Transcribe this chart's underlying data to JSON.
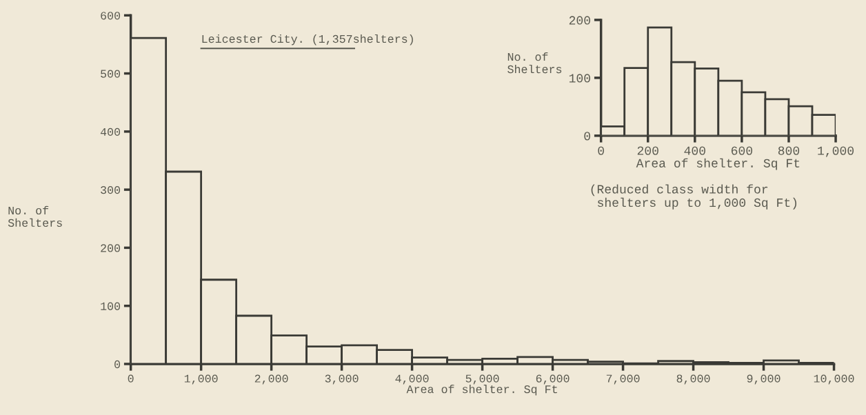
{
  "chart_data": [
    {
      "type": "histogram",
      "title": "Leicester City. (1,357shelters)",
      "xlabel": "Area of shelter. Sq Ft",
      "ylabel": "No. of\nShelters",
      "bins": [
        0,
        500,
        1000,
        1500,
        2000,
        2500,
        3000,
        3500,
        4000,
        4500,
        5000,
        5500,
        6000,
        6500,
        7000,
        7500,
        8000,
        8500,
        9000,
        9500,
        10000
      ],
      "values": [
        561,
        331,
        145,
        83,
        49,
        30,
        32,
        24,
        11,
        7,
        9,
        12,
        7,
        4,
        1,
        5,
        3,
        2,
        6,
        2
      ],
      "color": "#f0e9d8",
      "xlim": [
        0,
        10000
      ],
      "ylim": [
        0,
        600
      ],
      "xticks": [
        0,
        {
          "value": 1000,
          "label": "1,000"
        },
        {
          "value": 2000,
          "label": "2,000"
        },
        {
          "value": 3000,
          "label": "3,000"
        },
        {
          "value": 4000,
          "label": "4,000"
        },
        {
          "value": 5000,
          "label": "5,000"
        },
        {
          "value": 6000,
          "label": "6,000"
        },
        {
          "value": 7000,
          "label": "7,000"
        },
        {
          "value": 8000,
          "label": "8,000"
        },
        {
          "value": 9000,
          "label": "9,000"
        },
        {
          "value": 10000,
          "label": "10,000"
        }
      ],
      "yticks": [
        0,
        100,
        200,
        300,
        400,
        500,
        600
      ],
      "grid": false
    },
    {
      "type": "histogram",
      "xlabel": "Area of shelter. Sq Ft",
      "ylabel": "No. of\nShelters",
      "annotations": [
        "(Reduced class width for\n shelters up to 1,000 Sq Ft)"
      ],
      "bins": [
        0,
        100,
        200,
        300,
        400,
        500,
        600,
        700,
        800,
        900,
        1000
      ],
      "values": [
        16,
        117,
        187,
        127,
        116,
        95,
        75,
        63,
        51,
        36
      ],
      "color": "#f0e9d8",
      "xlim": [
        0,
        1000
      ],
      "ylim": [
        0,
        200
      ],
      "xticks": [
        0,
        200,
        400,
        600,
        800,
        {
          "value": 1000,
          "label": "1,000"
        }
      ],
      "yticks": [
        0,
        100,
        200
      ],
      "grid": false
    }
  ]
}
